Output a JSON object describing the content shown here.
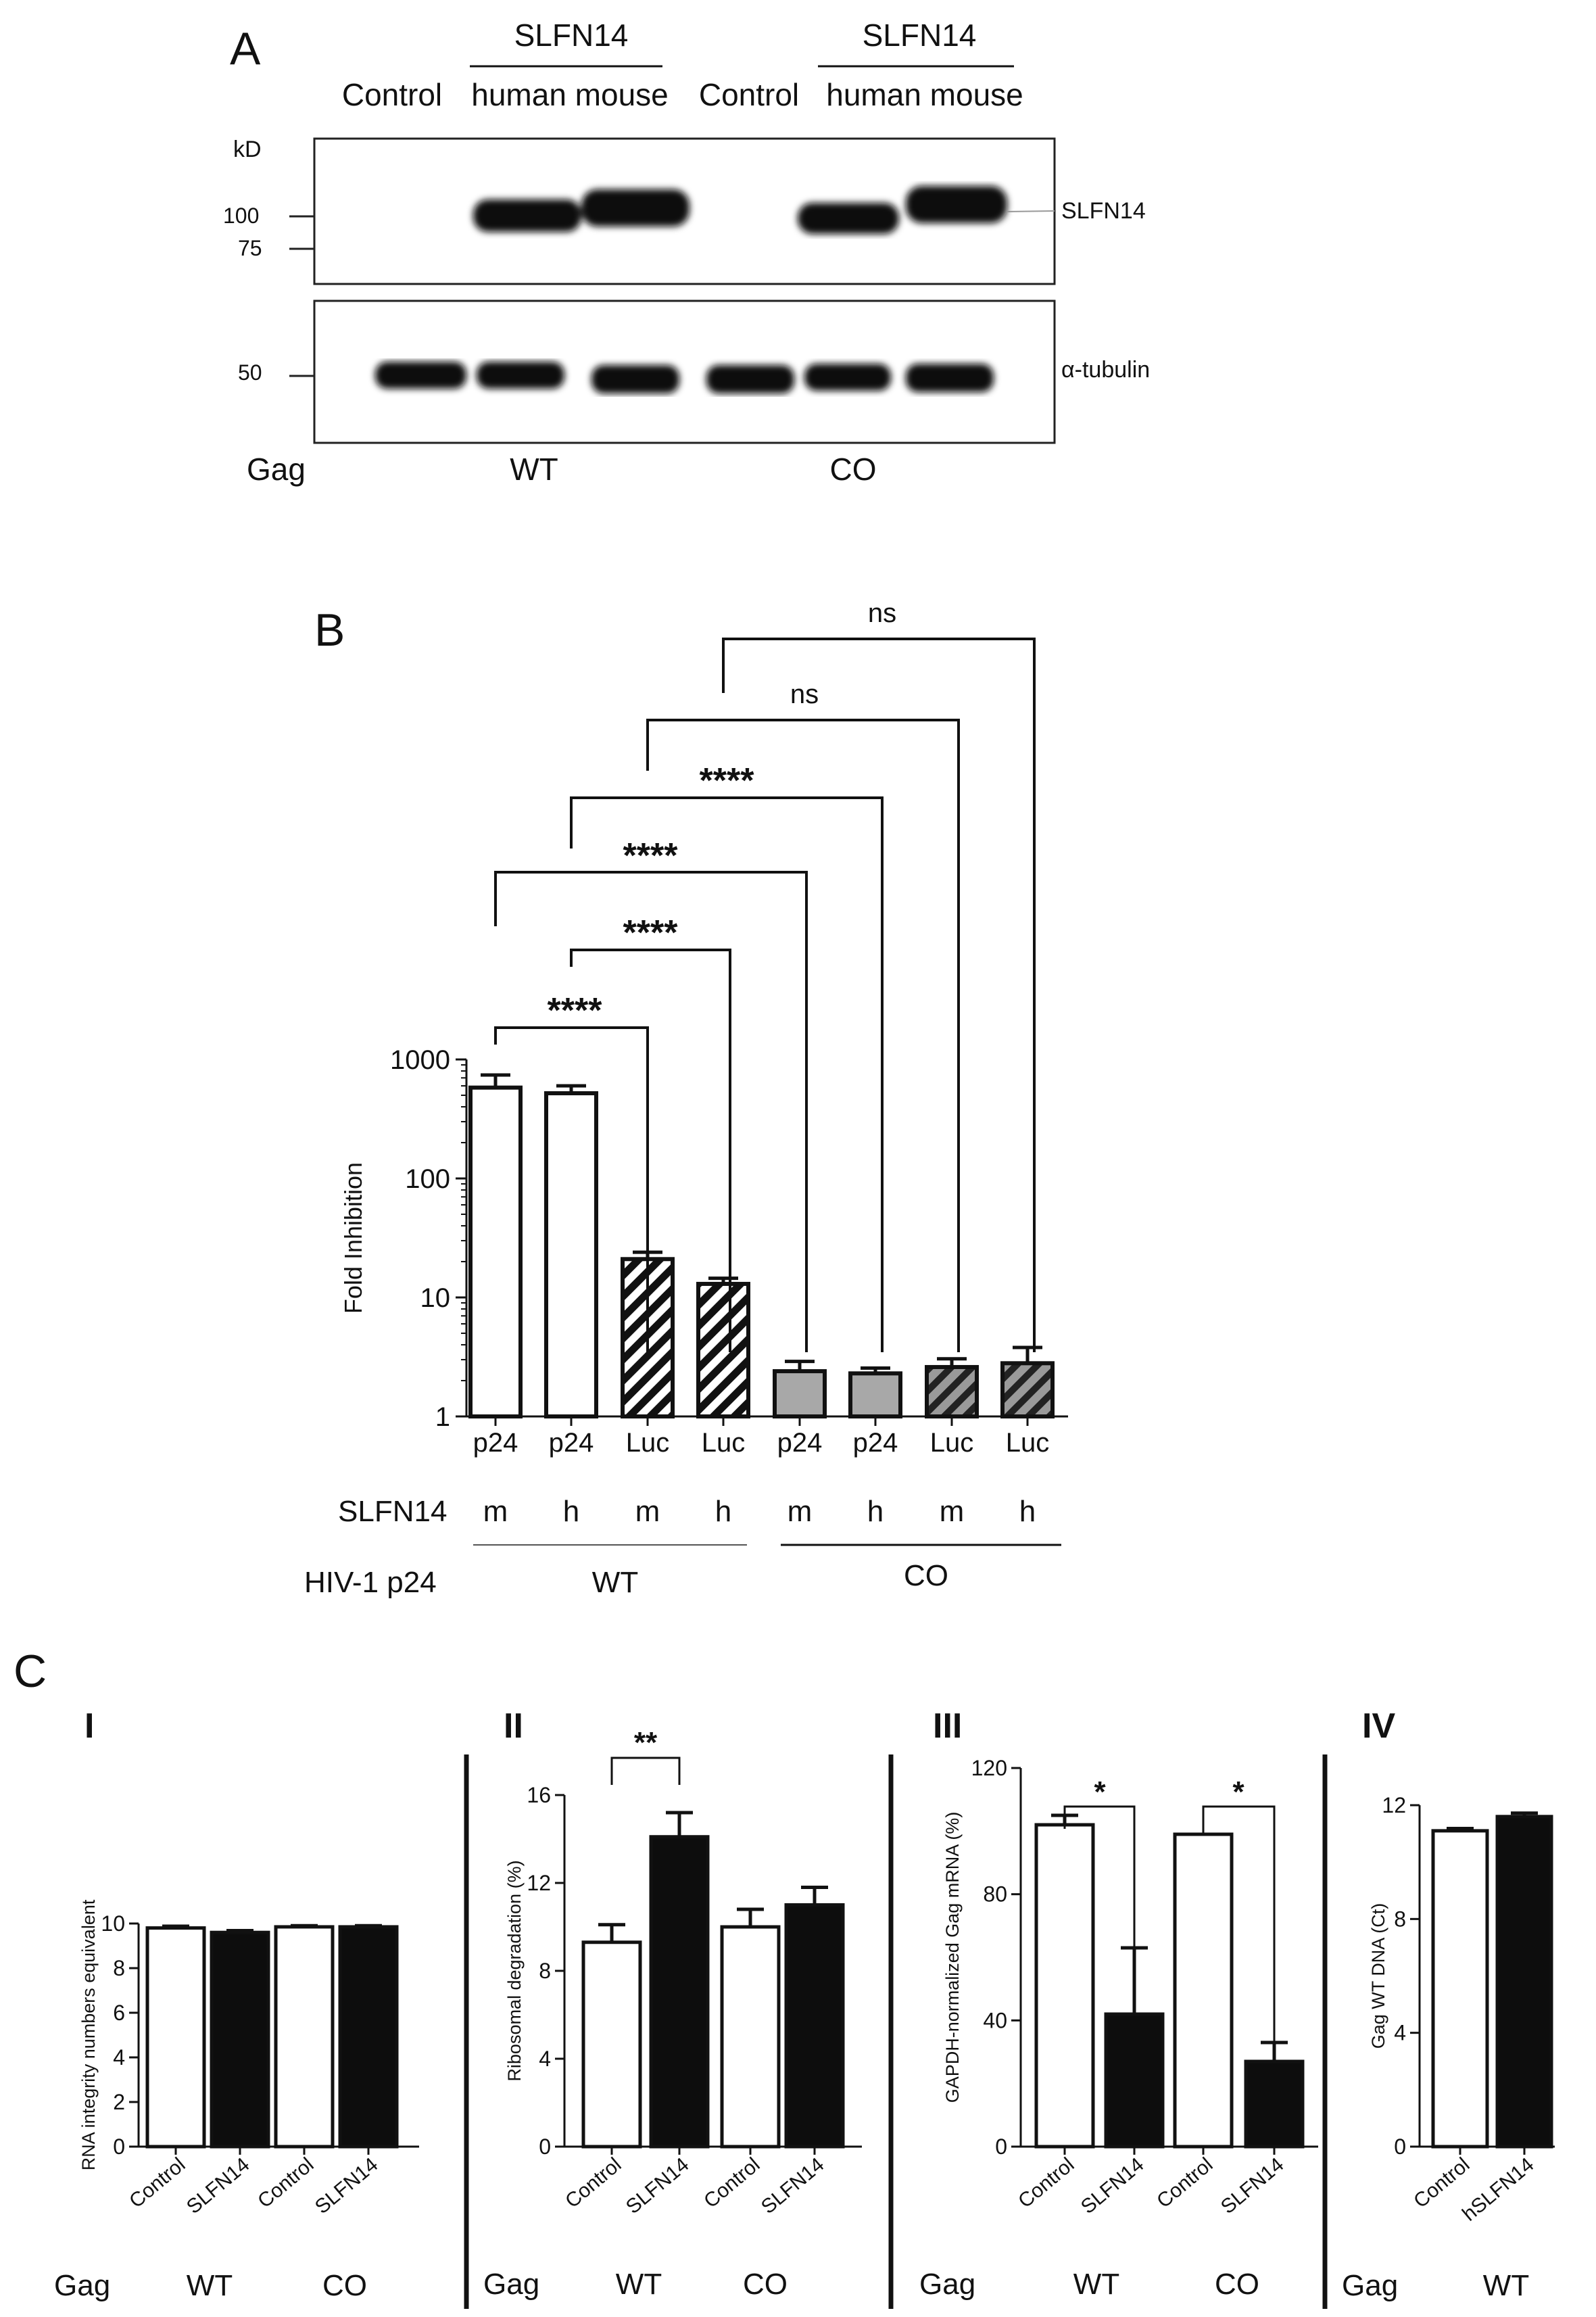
{
  "panelA": {
    "letter": "A",
    "group_labels": [
      "SLFN14",
      "SLFN14"
    ],
    "lane_labels": [
      "Control",
      "human mouse",
      "Control",
      "human mouse"
    ],
    "kd_label": "kD",
    "markers": [
      "100",
      "75",
      "50"
    ],
    "band_labels": [
      "SLFN14",
      "α-tubulin"
    ],
    "gag_label": "Gag",
    "gag_values": [
      "WT",
      "CO"
    ]
  },
  "panelB": {
    "letter": "B",
    "row_labels": [
      "SLFN14",
      "HIV-1 p24"
    ],
    "slfn14_row": [
      "m",
      "h",
      "m",
      "h",
      "m",
      "h",
      "m",
      "h"
    ],
    "p24_groups": [
      "WT",
      "CO"
    ],
    "significance": [
      "ns",
      "ns",
      "****",
      "****",
      "****",
      "****"
    ]
  },
  "panelC": {
    "letter": "C",
    "gag_label": "Gag",
    "subpanels": [
      "I",
      "II",
      "III",
      "IV"
    ],
    "sig_II": [
      "**"
    ],
    "sig_III": [
      "*",
      "*"
    ],
    "groups_I": [
      "WT",
      "CO"
    ],
    "groups_II": [
      "WT",
      "CO"
    ],
    "groups_III": [
      "WT",
      "CO"
    ],
    "groups_IV": [
      "WT"
    ]
  },
  "chart_data": [
    {
      "id": "B",
      "type": "bar",
      "yscale": "log",
      "ylabel": "Fold Inhibition",
      "yticks": [
        "1",
        "10",
        "100",
        "1000"
      ],
      "ylim": [
        1,
        1000
      ],
      "categories": [
        "p24",
        "p24",
        "Luc",
        "Luc",
        "p24",
        "p24",
        "Luc",
        "Luc"
      ],
      "values": [
        580,
        520,
        21,
        13,
        2.4,
        2.3,
        2.6,
        2.8
      ],
      "errors": [
        160,
        80,
        3,
        1.5,
        0.5,
        0.25,
        0.45,
        1.0
      ],
      "styles": [
        "white",
        "white",
        "hatch",
        "hatch",
        "gray",
        "gray",
        "grayhatch",
        "grayhatch"
      ]
    },
    {
      "id": "C-I",
      "type": "bar",
      "ylabel": "RNA integrity numbers equivalent",
      "yticks": [
        "0",
        "2",
        "4",
        "6",
        "8",
        "10"
      ],
      "ylim": [
        0,
        10
      ],
      "categories": [
        "Control",
        "SLFN14",
        "Control",
        "SLFN14"
      ],
      "values": [
        9.8,
        9.6,
        9.85,
        9.85
      ],
      "errors": [
        0.08,
        0.08,
        0.05,
        0.05
      ],
      "styles": [
        "white",
        "black",
        "white",
        "black"
      ]
    },
    {
      "id": "C-II",
      "type": "bar",
      "ylabel": "Ribosomal degradation (%)",
      "yticks": [
        "0",
        "4",
        "8",
        "12",
        "16"
      ],
      "ylim": [
        0,
        16
      ],
      "categories": [
        "Control",
        "SLFN14",
        "Control",
        "SLFN14"
      ],
      "values": [
        9.3,
        14.1,
        10.0,
        11.0
      ],
      "errors": [
        0.8,
        1.1,
        0.8,
        0.8
      ],
      "styles": [
        "white",
        "black",
        "white",
        "black"
      ]
    },
    {
      "id": "C-III",
      "type": "bar",
      "ylabel": "GAPDH-normalized Gag mRNA (%)",
      "yticks": [
        "0",
        "40",
        "80",
        "120"
      ],
      "ylim": [
        0,
        120
      ],
      "categories": [
        "Control",
        "SLFN14",
        "Control",
        "SLFN14"
      ],
      "values": [
        102,
        42,
        99,
        27
      ],
      "errors": [
        3,
        21,
        0,
        6
      ],
      "styles": [
        "white",
        "black",
        "white",
        "black"
      ]
    },
    {
      "id": "C-IV",
      "type": "bar",
      "ylabel": "Gag WT DNA (Ct)",
      "yticks": [
        "0",
        "4",
        "8",
        "12"
      ],
      "ylim": [
        0,
        12
      ],
      "categories": [
        "Control",
        "hSLFN14"
      ],
      "values": [
        11.1,
        11.6
      ],
      "errors": [
        0.08,
        0.12
      ],
      "styles": [
        "white",
        "black"
      ]
    }
  ]
}
